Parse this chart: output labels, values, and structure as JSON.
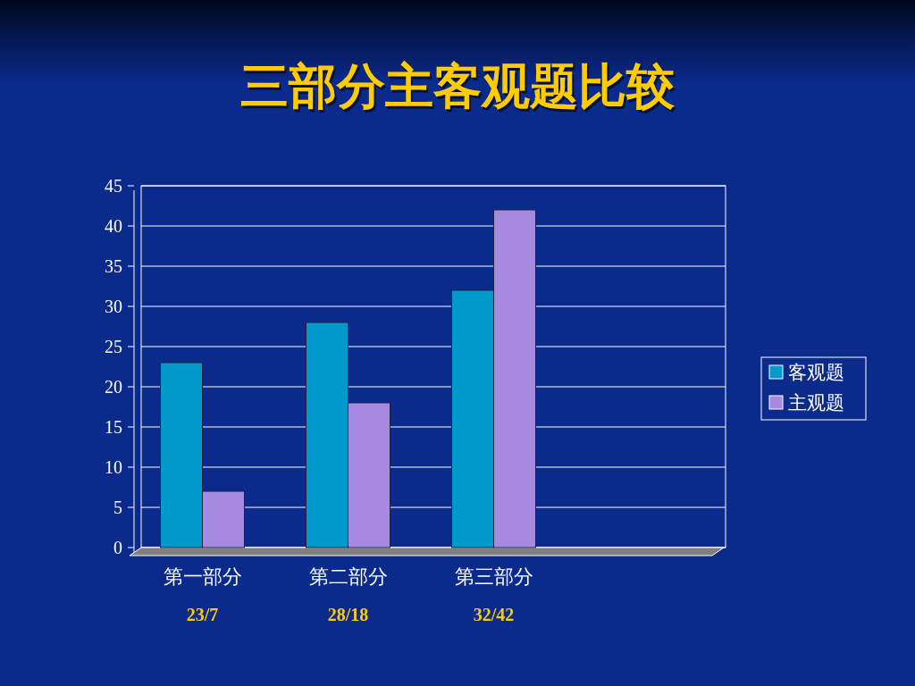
{
  "chart_data": {
    "type": "bar",
    "title": "三部分主客观题比较",
    "categories": [
      "第一部分",
      "第二部分",
      "第三部分",
      null
    ],
    "series": [
      {
        "name": "客观题",
        "color": "#0099cc",
        "values": [
          23,
          28,
          32,
          null
        ]
      },
      {
        "name": "主观题",
        "color": "#a68ae0",
        "values": [
          7,
          18,
          42,
          null
        ]
      }
    ],
    "ylim": [
      0,
      45
    ],
    "yticks": [
      0,
      5,
      10,
      15,
      20,
      25,
      30,
      35,
      40,
      45
    ],
    "grid": "y",
    "legend": "right",
    "annotations": [
      "23/7",
      "28/18",
      "32/42"
    ]
  }
}
